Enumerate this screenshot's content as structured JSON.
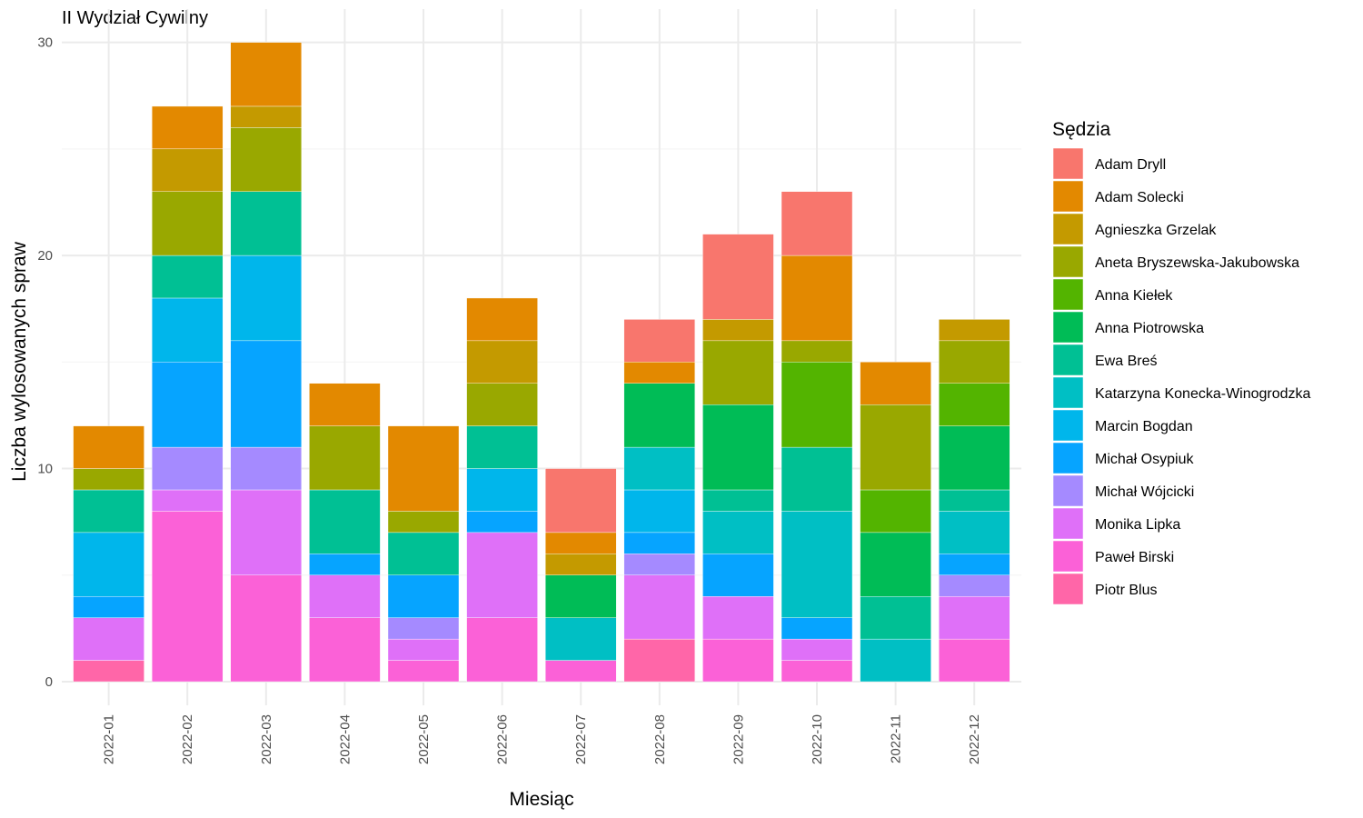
{
  "chart_data": {
    "type": "bar",
    "stacked": true,
    "title": "II Wydział Cywilny",
    "xlabel": "Miesiąc",
    "ylabel": "Liczba wylosowanych spraw",
    "ylim": [
      0,
      30
    ],
    "yticks": [
      0,
      10,
      20,
      30
    ],
    "grid": true,
    "legend_title": "Sędzia",
    "legend_position": "right",
    "categories": [
      "2022-01",
      "2022-02",
      "2022-03",
      "2022-04",
      "2022-05",
      "2022-06",
      "2022-07",
      "2022-08",
      "2022-09",
      "2022-10",
      "2022-11",
      "2022-12"
    ],
    "series": [
      {
        "name": "Adam Dryll",
        "color": "#F8766D",
        "values": [
          0,
          0,
          0,
          0,
          0,
          0,
          3,
          2,
          4,
          3,
          0,
          0
        ]
      },
      {
        "name": "Adam Solecki",
        "color": "#E38900",
        "values": [
          2,
          2,
          3,
          2,
          4,
          2,
          1,
          1,
          0,
          4,
          2,
          0
        ]
      },
      {
        "name": "Agnieszka Grzelak",
        "color": "#C49A00",
        "values": [
          0,
          2,
          1,
          0,
          0,
          2,
          1,
          0,
          1,
          0,
          0,
          1
        ]
      },
      {
        "name": "Aneta Bryszewska-Jakubowska",
        "color": "#99A800",
        "values": [
          1,
          3,
          3,
          3,
          1,
          2,
          0,
          0,
          3,
          1,
          4,
          2
        ]
      },
      {
        "name": "Anna Kiełek",
        "color": "#53B400",
        "values": [
          0,
          0,
          0,
          0,
          0,
          0,
          0,
          0,
          0,
          4,
          2,
          2
        ]
      },
      {
        "name": "Anna Piotrowska",
        "color": "#00BC56",
        "values": [
          0,
          0,
          0,
          0,
          0,
          0,
          2,
          3,
          4,
          0,
          3,
          3
        ]
      },
      {
        "name": "Ewa Breś",
        "color": "#00C094",
        "values": [
          2,
          2,
          3,
          3,
          2,
          2,
          0,
          0,
          1,
          3,
          2,
          1
        ]
      },
      {
        "name": "Katarzyna Konecka-Winogrodzka",
        "color": "#00BFC4",
        "values": [
          0,
          0,
          0,
          0,
          0,
          0,
          2,
          2,
          2,
          5,
          2,
          2
        ]
      },
      {
        "name": "Marcin Bogdan",
        "color": "#00B6EB",
        "values": [
          3,
          3,
          4,
          0,
          0,
          2,
          0,
          2,
          0,
          0,
          0,
          0
        ]
      },
      {
        "name": "Michał Osypiuk",
        "color": "#06A4FF",
        "values": [
          1,
          4,
          5,
          1,
          2,
          1,
          0,
          1,
          2,
          1,
          0,
          1
        ]
      },
      {
        "name": "Michał Wójcicki",
        "color": "#A58AFF",
        "values": [
          0,
          2,
          2,
          0,
          1,
          0,
          0,
          1,
          0,
          0,
          0,
          1
        ]
      },
      {
        "name": "Monika Lipka",
        "color": "#DF70F8",
        "values": [
          2,
          1,
          4,
          2,
          1,
          4,
          0,
          3,
          2,
          1,
          0,
          2
        ]
      },
      {
        "name": "Paweł Birski",
        "color": "#FB61D7",
        "values": [
          0,
          8,
          5,
          3,
          1,
          3,
          1,
          0,
          2,
          1,
          0,
          2
        ]
      },
      {
        "name": "Piotr Blus",
        "color": "#FF66A8",
        "values": [
          1,
          0,
          0,
          0,
          0,
          0,
          0,
          2,
          0,
          0,
          0,
          0
        ]
      }
    ]
  }
}
